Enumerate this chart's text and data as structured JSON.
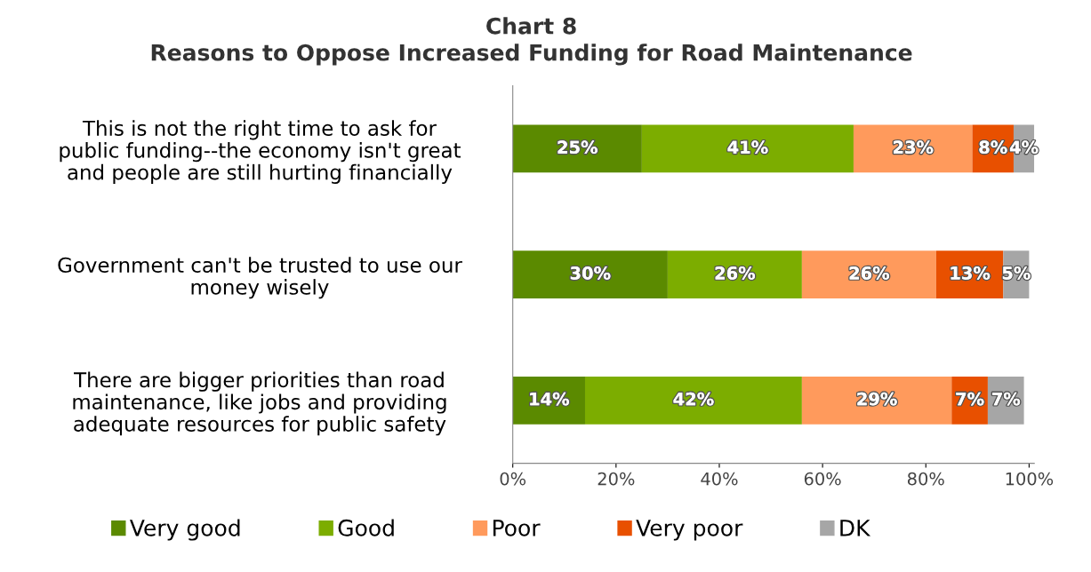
{
  "chart_data": {
    "type": "bar",
    "orientation": "horizontal",
    "stacked": true,
    "title": "Chart 8\nReasons to Oppose Increased Funding for Road Maintenance",
    "categories": [
      "This is not the right time to ask for\npublic funding--the economy isn't great\nand people are still hurting financially",
      "Government can't be trusted to use our\nmoney wisely",
      "There are bigger priorities than road\nmaintenance, like jobs and providing\nadequate resources for public safety"
    ],
    "series": [
      {
        "name": "Very good",
        "color": "#5b8a00",
        "values": [
          25,
          30,
          14
        ],
        "value_labels": [
          "25%",
          "30%",
          "14%"
        ]
      },
      {
        "name": "Good",
        "color": "#7cad00",
        "values": [
          41,
          26,
          42
        ],
        "value_labels": [
          "41%",
          "26%",
          "42%"
        ]
      },
      {
        "name": "Poor",
        "color": "#ff9a5c",
        "values": [
          23,
          26,
          29
        ],
        "value_labels": [
          "23%",
          "26%",
          "29%"
        ]
      },
      {
        "name": "Very poor",
        "color": "#e85000",
        "values": [
          8,
          13,
          7
        ],
        "value_labels": [
          "8%",
          "13%",
          "7%"
        ]
      },
      {
        "name": "DK",
        "color": "#a6a6a6",
        "values": [
          4,
          5,
          7
        ],
        "value_labels": [
          "4%",
          "5%",
          "7%"
        ]
      }
    ],
    "xlim": [
      0,
      101
    ],
    "xticks": [
      {
        "value": 0,
        "label": "0%"
      },
      {
        "value": 20,
        "label": "20%"
      },
      {
        "value": 40,
        "label": "40%"
      },
      {
        "value": 60,
        "label": "60%"
      },
      {
        "value": 80,
        "label": "80%"
      },
      {
        "value": 100,
        "label": "100%"
      }
    ],
    "grid": false,
    "legend": "bottom"
  }
}
